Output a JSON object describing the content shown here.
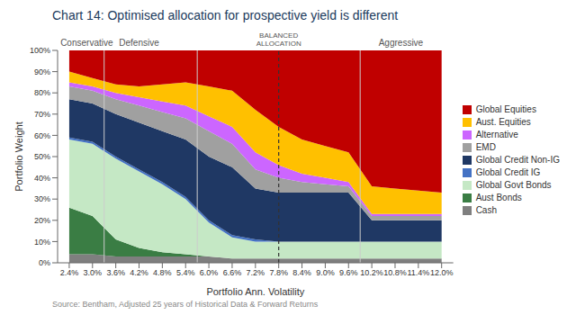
{
  "chart_data": {
    "type": "area",
    "stacked": true,
    "title": "Chart 14: Optimised allocation for prospective yield is different",
    "source": "Source: Bentham, Adjusted 25 years of Historical Data & Forward Returns",
    "xlabel": "Portfolio Ann. Volatility",
    "ylabel": "Portfolio Weight",
    "x": [
      2.4,
      3.0,
      3.6,
      4.2,
      4.8,
      5.4,
      6.0,
      6.6,
      7.2,
      7.8,
      8.4,
      9.0,
      9.6,
      10.2,
      10.8,
      11.4,
      12.0
    ],
    "xlim": [
      2.1,
      12.3
    ],
    "xticks": [
      {
        "value": 2.4,
        "label": "2.4%"
      },
      {
        "value": 3.0,
        "label": "3.0%"
      },
      {
        "value": 3.6,
        "label": "3.6%"
      },
      {
        "value": 4.2,
        "label": "4.2%"
      },
      {
        "value": 4.8,
        "label": "4.8%"
      },
      {
        "value": 5.4,
        "label": "5.4%"
      },
      {
        "value": 6.0,
        "label": "6.0%"
      },
      {
        "value": 6.6,
        "label": "6.6%"
      },
      {
        "value": 7.2,
        "label": "7.2%"
      },
      {
        "value": 7.8,
        "label": "7.8%"
      },
      {
        "value": 8.4,
        "label": "8.4%"
      },
      {
        "value": 9.0,
        "label": "9.0%"
      },
      {
        "value": 9.6,
        "label": "9.6%"
      },
      {
        "value": 10.2,
        "label": "10.2%"
      },
      {
        "value": 10.8,
        "label": "10.8%"
      },
      {
        "value": 11.4,
        "label": "11.4%"
      },
      {
        "value": 12.0,
        "label": "12.0%"
      }
    ],
    "ylim": [
      0,
      100
    ],
    "yticks": [
      {
        "value": 0,
        "label": "0%"
      },
      {
        "value": 10,
        "label": "10%"
      },
      {
        "value": 20,
        "label": "20%"
      },
      {
        "value": 30,
        "label": "30%"
      },
      {
        "value": 40,
        "label": "40%"
      },
      {
        "value": 50,
        "label": "50%"
      },
      {
        "value": 60,
        "label": "60%"
      },
      {
        "value": 70,
        "label": "70%"
      },
      {
        "value": 80,
        "label": "80%"
      },
      {
        "value": 90,
        "label": "90%"
      },
      {
        "value": 100,
        "label": "100%"
      }
    ],
    "grid": false,
    "legend": "right",
    "series": [
      {
        "name": "Cash",
        "color": "#7f7f7f",
        "values": [
          4,
          4,
          3,
          3,
          3,
          3,
          3,
          2,
          2,
          2,
          2,
          2,
          2,
          2,
          2,
          2,
          2
        ]
      },
      {
        "name": "Aust Bonds",
        "color": "#3a7d44",
        "values": [
          22,
          18,
          8,
          4,
          2,
          1,
          0,
          0,
          0,
          0,
          0,
          0,
          0,
          0,
          0,
          0,
          0
        ]
      },
      {
        "name": "Global Govt Bonds",
        "color": "#c5e8c5",
        "values": [
          32,
          34,
          38,
          36,
          32,
          26,
          16,
          10,
          8,
          8,
          8,
          8,
          8,
          8,
          8,
          8,
          8
        ]
      },
      {
        "name": "Global Credit IG",
        "color": "#4472c4",
        "values": [
          1,
          1,
          1,
          1,
          1,
          1,
          1,
          1,
          1,
          0,
          0,
          0,
          0,
          0,
          0,
          0,
          0
        ]
      },
      {
        "name": "Global Credit Non-IG",
        "color": "#1f3864",
        "values": [
          18,
          18,
          20,
          22,
          24,
          27,
          30,
          32,
          24,
          23,
          23,
          23,
          23,
          10,
          10,
          10,
          10
        ]
      },
      {
        "name": "EMD",
        "color": "#a0a0a0",
        "values": [
          6,
          6,
          7,
          8,
          9,
          10,
          12,
          11,
          9,
          7,
          5,
          4,
          3,
          2,
          2,
          2,
          2
        ]
      },
      {
        "name": "Alternative",
        "color": "#cc66ff",
        "values": [
          2,
          2,
          3,
          4,
          5,
          6,
          7,
          8,
          8,
          6,
          4,
          3,
          2,
          1,
          1,
          1,
          1
        ]
      },
      {
        "name": "Aust. Equities",
        "color": "#ffc000",
        "values": [
          5,
          4,
          4,
          5,
          8,
          11,
          14,
          17,
          20,
          18,
          16,
          15,
          14,
          13,
          12,
          11,
          10
        ]
      },
      {
        "name": "Global Equities",
        "color": "#c00000",
        "values": [
          10,
          13,
          16,
          17,
          16,
          15,
          17,
          19,
          28,
          36,
          42,
          45,
          48,
          64,
          65,
          66,
          67
        ]
      }
    ],
    "annotations": [
      {
        "text": "Conservative",
        "x": 2.85
      },
      {
        "text": "Defensive",
        "x": 4.2
      },
      {
        "text": "BALANCED\nALLOCATION",
        "x": 7.8
      },
      {
        "text": "Aggressive",
        "x": 10.95
      }
    ],
    "region_boundaries": {
      "x": [
        3.3,
        5.7,
        9.9
      ],
      "color": "#cccccc",
      "line_style": "solid"
    },
    "reference_line": {
      "x": 7.8,
      "color": "#333333",
      "line_style": "dashed"
    }
  }
}
